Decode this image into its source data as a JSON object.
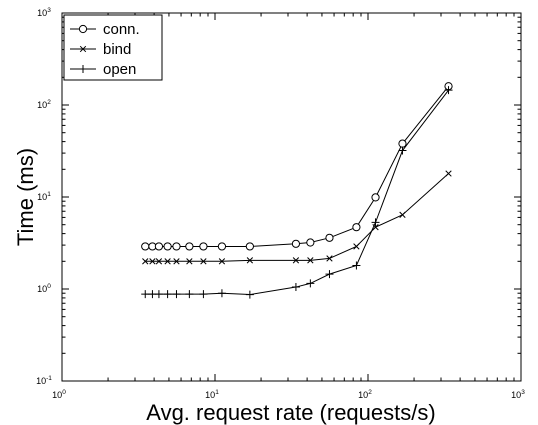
{
  "chart_data": {
    "type": "line",
    "xlabel": "Avg. request rate (requests/s)",
    "ylabel": "Time (ms)",
    "x_scale": "log",
    "y_scale": "log",
    "xlim": [
      1,
      1000
    ],
    "ylim": [
      0.1,
      1000
    ],
    "grid": false,
    "legend_position": "top-left",
    "x_ticks": [
      {
        "base": "10",
        "exp": "0",
        "value": 1
      },
      {
        "base": "10",
        "exp": "1",
        "value": 10
      },
      {
        "base": "10",
        "exp": "2",
        "value": 100
      },
      {
        "base": "10",
        "exp": "3",
        "value": 1000
      }
    ],
    "y_ticks": [
      {
        "base": "10",
        "exp": "-1",
        "value": 0.1
      },
      {
        "base": "10",
        "exp": "0",
        "value": 1
      },
      {
        "base": "10",
        "exp": "1",
        "value": 10
      },
      {
        "base": "10",
        "exp": "2",
        "value": 100
      },
      {
        "base": "10",
        "exp": "3",
        "value": 1000
      }
    ],
    "series": [
      {
        "name": "conn.",
        "marker": "circle",
        "color": "#000000",
        "x": [
          3.5,
          3.9,
          4.3,
          4.9,
          5.6,
          6.8,
          8.4,
          11.1,
          16.9,
          33.8,
          42.0,
          56.0,
          84.0,
          112.0,
          168.0,
          336.0
        ],
        "y": [
          2.9,
          2.9,
          2.9,
          2.9,
          2.9,
          2.9,
          2.9,
          2.9,
          2.9,
          3.1,
          3.2,
          3.6,
          4.7,
          9.9,
          38.0,
          160.0
        ]
      },
      {
        "name": "bind",
        "marker": "x",
        "color": "#000000",
        "x": [
          3.5,
          3.9,
          4.3,
          4.9,
          5.6,
          6.8,
          8.4,
          11.1,
          16.9,
          33.8,
          42.0,
          56.0,
          84.0,
          112.0,
          168.0,
          336.0
        ],
        "y": [
          2.0,
          2.0,
          2.0,
          2.0,
          2.0,
          2.0,
          2.0,
          2.0,
          2.05,
          2.05,
          2.05,
          2.15,
          2.9,
          4.7,
          6.4,
          18.0
        ]
      },
      {
        "name": "open",
        "marker": "plus",
        "color": "#000000",
        "x": [
          3.5,
          3.9,
          4.3,
          4.9,
          5.6,
          6.8,
          8.4,
          11.1,
          16.9,
          33.8,
          42.0,
          56.0,
          84.0,
          112.0,
          168.0,
          336.0
        ],
        "y": [
          0.88,
          0.88,
          0.88,
          0.88,
          0.88,
          0.88,
          0.88,
          0.9,
          0.87,
          1.05,
          1.15,
          1.45,
          1.8,
          5.3,
          32.0,
          145.0
        ]
      }
    ]
  }
}
